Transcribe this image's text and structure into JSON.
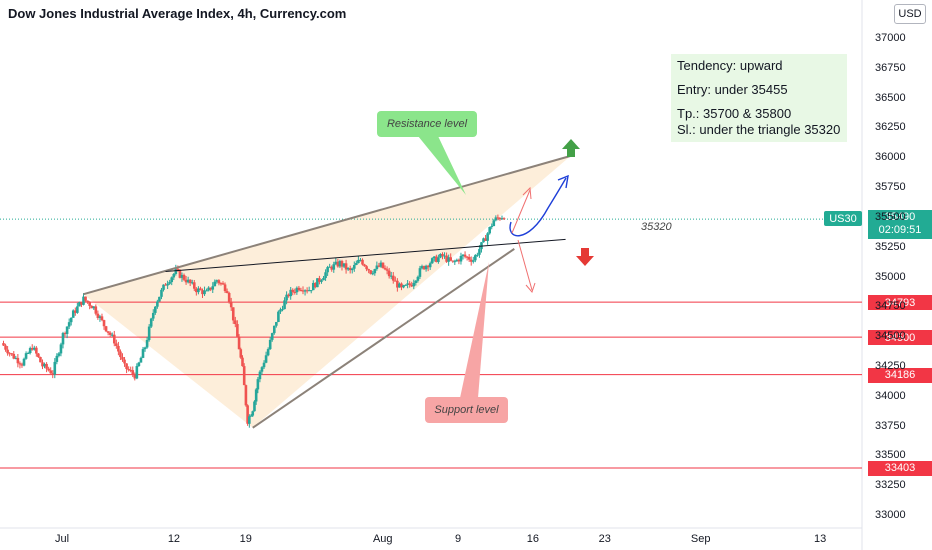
{
  "header": {
    "title": "Dow Jones Industrial Average Index, 4h, Currency.com",
    "currency_button": "USD"
  },
  "info_box": {
    "tendency": "Tendency: upward",
    "entry": "Entry: under 35455",
    "tp": "Tp.: 35700 & 35800",
    "sl": "Sl.: under the triangle 35320"
  },
  "callouts": {
    "resistance": "Resistance level",
    "support": "Support level"
  },
  "level_label": "35320",
  "current_price": {
    "symbol": "US30",
    "price": "35490",
    "countdown": "02:09:51"
  },
  "price_tags": [
    "34793",
    "34500",
    "34186",
    "33403"
  ],
  "colors": {
    "bull": "#26a69a",
    "bear": "#ef5350",
    "triangle_fill": "#fdebd3",
    "support_line": "#f23645",
    "arrow_up": "#43a047",
    "arrow_down": "#e53935",
    "blue_path": "#1e3fd8"
  },
  "chart_data": {
    "type": "candlestick",
    "y_ticks": [
      33000,
      33250,
      33500,
      33750,
      34000,
      34250,
      34500,
      34750,
      35000,
      35250,
      35500,
      35750,
      36000,
      36250,
      36500,
      36750,
      37000
    ],
    "ylim": [
      32950,
      37150
    ],
    "x_ticks": [
      {
        "label": "Jul",
        "day": 1
      },
      {
        "label": "12",
        "day": 12
      },
      {
        "label": "19",
        "day": 19
      },
      {
        "label": "Aug",
        "day": 32
      },
      {
        "label": "9",
        "day": 40
      },
      {
        "label": "16",
        "day": 47
      },
      {
        "label": "23",
        "day": 54
      },
      {
        "label": "Sep",
        "day": 63
      },
      {
        "label": "13",
        "day": 75
      }
    ],
    "horizontal_levels": [
      34793,
      34500,
      34186,
      33403
    ],
    "current_price": 35490,
    "trend_lines": [
      {
        "name": "resistance",
        "points": [
          [
            3,
            34860
          ],
          [
            50.5,
            36020
          ]
        ]
      },
      {
        "name": "support",
        "points": [
          [
            19.5,
            33740
          ],
          [
            45,
            35240
          ]
        ]
      },
      {
        "name": "35320-level",
        "points": [
          [
            11,
            35050
          ],
          [
            50,
            35320
          ]
        ]
      }
    ],
    "triangle": [
      [
        3,
        34860
      ],
      [
        19.5,
        33740
      ],
      [
        50.5,
        36020
      ]
    ],
    "candles_path": [
      [
        -5,
        34450
      ],
      [
        -4,
        34350
      ],
      [
        -3,
        34280
      ],
      [
        -2,
        34420
      ],
      [
        -1,
        34260
      ],
      [
        0,
        34200
      ],
      [
        1,
        34520
      ],
      [
        2,
        34700
      ],
      [
        3,
        34820
      ],
      [
        4,
        34750
      ],
      [
        5,
        34600
      ],
      [
        6,
        34470
      ],
      [
        7,
        34250
      ],
      [
        8,
        34180
      ],
      [
        9,
        34420
      ],
      [
        10,
        34780
      ],
      [
        11,
        34950
      ],
      [
        12,
        35050
      ],
      [
        13,
        34980
      ],
      [
        14,
        34900
      ],
      [
        15,
        34870
      ],
      [
        16,
        34980
      ],
      [
        17,
        34900
      ],
      [
        18,
        34500
      ],
      [
        18.5,
        34230
      ],
      [
        19,
        33800
      ],
      [
        19.5,
        33900
      ],
      [
        20,
        34150
      ],
      [
        21,
        34400
      ],
      [
        22,
        34700
      ],
      [
        23,
        34860
      ],
      [
        24,
        34920
      ],
      [
        25,
        34900
      ],
      [
        26,
        34980
      ],
      [
        27,
        35080
      ],
      [
        28,
        35120
      ],
      [
        29,
        35050
      ],
      [
        30,
        35150
      ],
      [
        31,
        35050
      ],
      [
        32,
        35100
      ],
      [
        33,
        35000
      ],
      [
        34,
        34900
      ],
      [
        35,
        34950
      ],
      [
        36,
        35080
      ],
      [
        37,
        35140
      ],
      [
        38,
        35180
      ],
      [
        39,
        35120
      ],
      [
        40,
        35180
      ],
      [
        41,
        35150
      ],
      [
        42,
        35300
      ],
      [
        43,
        35480
      ],
      [
        44,
        35520
      ]
    ]
  }
}
